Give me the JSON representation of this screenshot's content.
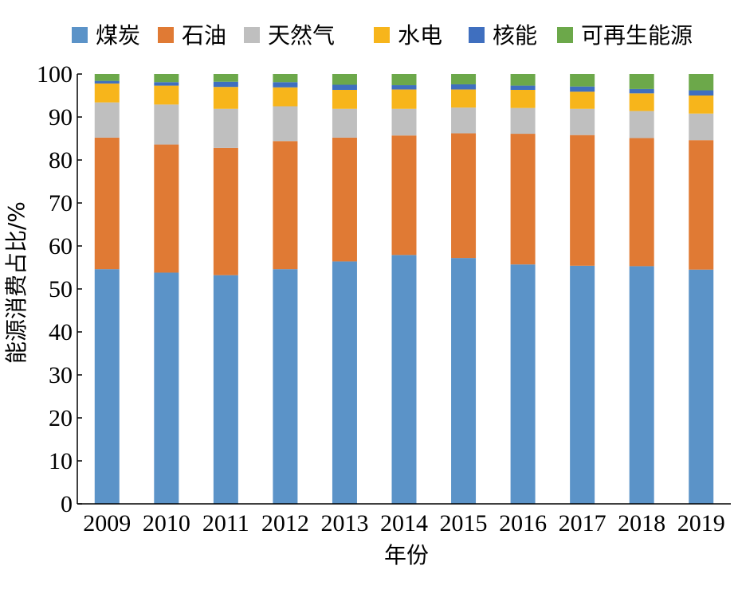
{
  "chart_data": {
    "type": "bar",
    "stacked": true,
    "title": "",
    "xlabel": "年份",
    "ylabel": "能源消费占比/%",
    "ylim": [
      0,
      100
    ],
    "yticks": [
      0,
      10,
      20,
      30,
      40,
      50,
      60,
      70,
      80,
      90,
      100
    ],
    "categories": [
      "2009",
      "2010",
      "2011",
      "2012",
      "2013",
      "2014",
      "2015",
      "2016",
      "2017",
      "2018",
      "2019"
    ],
    "series": [
      {
        "name": "煤炭",
        "color": "#5b93c8",
        "values": [
          54.6,
          53.8,
          53.2,
          54.6,
          56.4,
          57.9,
          57.2,
          55.7,
          55.4,
          55.3,
          54.5
        ]
      },
      {
        "name": "石油",
        "color": "#e07a34",
        "values": [
          30.6,
          29.8,
          29.6,
          29.8,
          28.8,
          27.8,
          29.0,
          30.4,
          30.4,
          29.8,
          30.1
        ]
      },
      {
        "name": "天然气",
        "color": "#bfbfbf",
        "values": [
          8.2,
          9.3,
          9.1,
          8.1,
          6.7,
          6.2,
          6.0,
          6.0,
          6.1,
          6.3,
          6.2
        ]
      },
      {
        "name": "水电",
        "color": "#f7b51b",
        "values": [
          4.4,
          4.4,
          5.1,
          4.4,
          4.4,
          4.5,
          4.2,
          4.2,
          4.0,
          4.1,
          4.2
        ]
      },
      {
        "name": "核能",
        "color": "#3f6fbf",
        "values": [
          0.6,
          0.8,
          1.2,
          1.2,
          1.2,
          1.0,
          1.2,
          1.0,
          1.2,
          1.0,
          1.2
        ]
      },
      {
        "name": "可再生能源",
        "color": "#6ca84a",
        "values": [
          1.6,
          1.9,
          1.8,
          1.9,
          2.5,
          2.6,
          2.4,
          2.7,
          2.9,
          3.5,
          3.8
        ]
      }
    ],
    "legend_position": "top",
    "grid": false
  }
}
